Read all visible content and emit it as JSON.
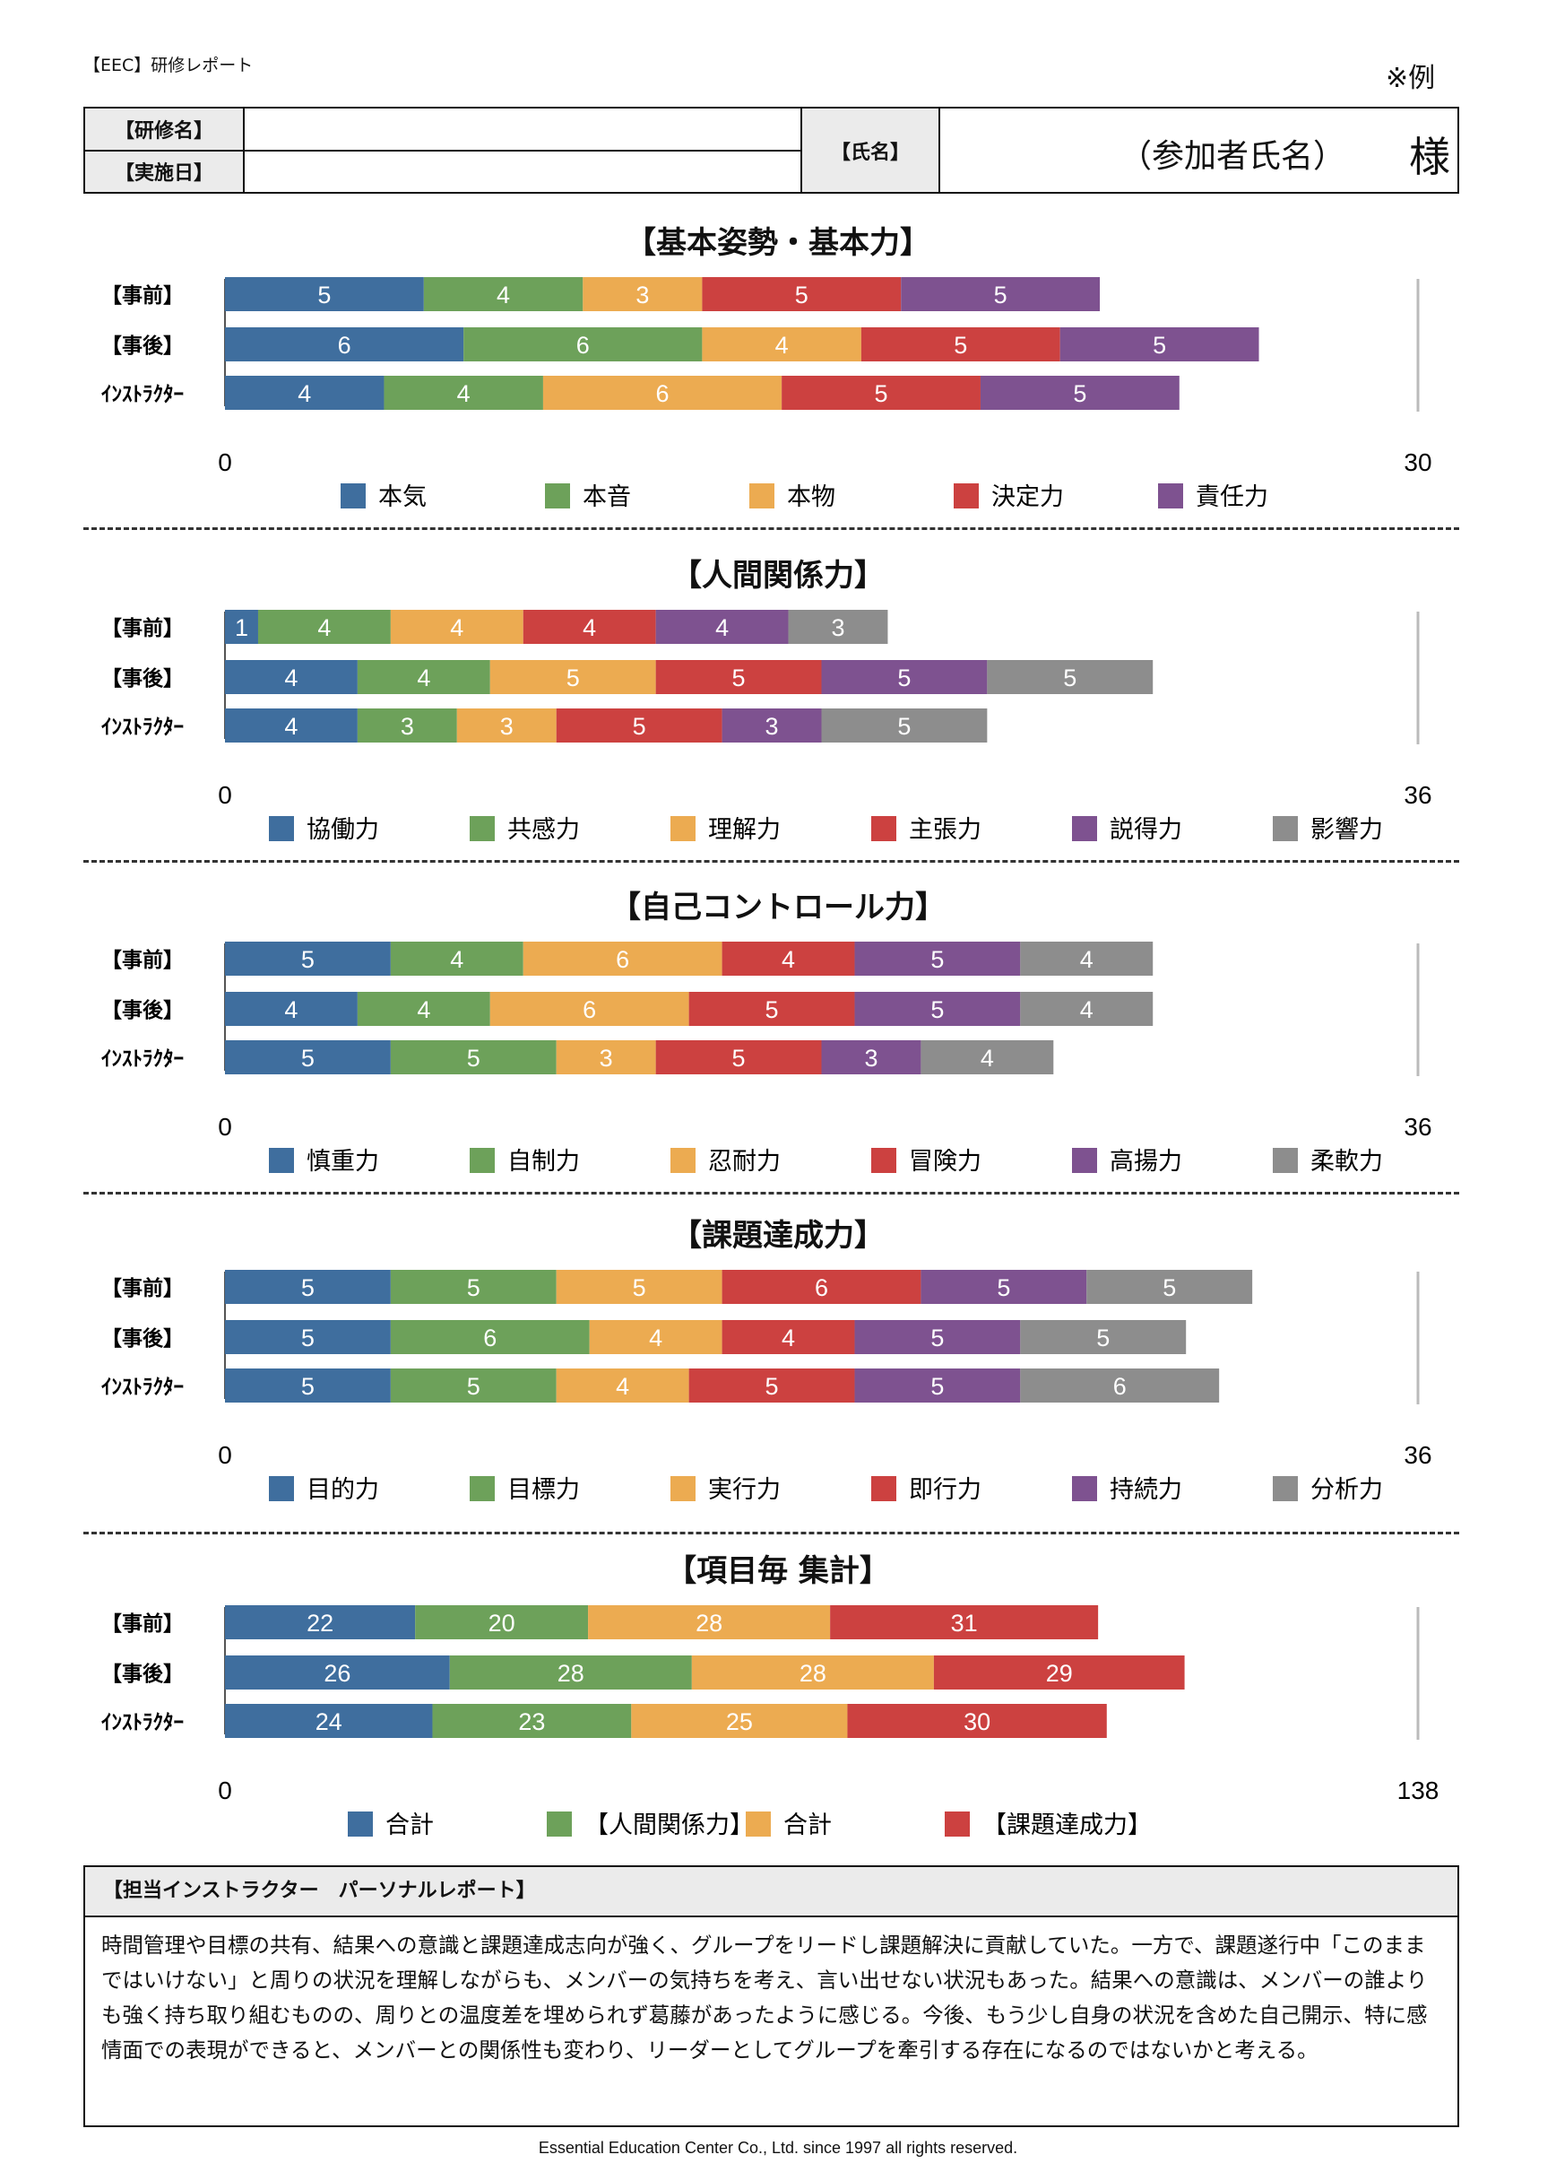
{
  "header": {
    "brand": "【EEC】研修レポート",
    "note": "※例",
    "training_name_label": "【研修名】",
    "training_name_value": "",
    "date_label": "【実施日】",
    "date_value": "",
    "name_label": "【氏名】",
    "name_value": "（参加者氏名）",
    "honorific": "様"
  },
  "colors": {
    "blue": "#3f6e9e",
    "green": "#6da15a",
    "orange": "#ecab51",
    "red": "#cc4140",
    "purple": "#7e5290",
    "gray": "#8d8d8d"
  },
  "chart_data": [
    {
      "type": "bar",
      "orientation": "horizontal",
      "stacked": true,
      "title": "【基本姿勢・基本力】",
      "categories": [
        "【事前】",
        "【事後】",
        "ｲﾝｽﾄﾗｸﾀｰ"
      ],
      "xlim": [
        0,
        30
      ],
      "x_tick_labels": [
        "0",
        "30"
      ],
      "legend_position": "bottom",
      "series": [
        {
          "name": "本気",
          "color": "#3f6e9e",
          "values": [
            5,
            6,
            4
          ]
        },
        {
          "name": "本音",
          "color": "#6da15a",
          "values": [
            4,
            6,
            4
          ]
        },
        {
          "name": "本物",
          "color": "#ecab51",
          "values": [
            3,
            4,
            6
          ]
        },
        {
          "name": "決定力",
          "color": "#cc4140",
          "values": [
            5,
            5,
            5
          ]
        },
        {
          "name": "責任力",
          "color": "#7e5290",
          "values": [
            5,
            5,
            5
          ]
        }
      ]
    },
    {
      "type": "bar",
      "orientation": "horizontal",
      "stacked": true,
      "title": "【人間関係力】",
      "categories": [
        "【事前】",
        "【事後】",
        "ｲﾝｽﾄﾗｸﾀｰ"
      ],
      "xlim": [
        0,
        36
      ],
      "x_tick_labels": [
        "0",
        "36"
      ],
      "legend_position": "bottom",
      "series": [
        {
          "name": "協働力",
          "color": "#3f6e9e",
          "values": [
            1,
            4,
            4
          ]
        },
        {
          "name": "共感力",
          "color": "#6da15a",
          "values": [
            4,
            4,
            3
          ]
        },
        {
          "name": "理解力",
          "color": "#ecab51",
          "values": [
            4,
            5,
            3
          ]
        },
        {
          "name": "主張力",
          "color": "#cc4140",
          "values": [
            4,
            5,
            5
          ]
        },
        {
          "name": "説得力",
          "color": "#7e5290",
          "values": [
            4,
            5,
            3
          ]
        },
        {
          "name": "影響力",
          "color": "#8d8d8d",
          "values": [
            3,
            5,
            5
          ]
        }
      ]
    },
    {
      "type": "bar",
      "orientation": "horizontal",
      "stacked": true,
      "title": "【自己コントロール力】",
      "categories": [
        "【事前】",
        "【事後】",
        "ｲﾝｽﾄﾗｸﾀｰ"
      ],
      "xlim": [
        0,
        36
      ],
      "x_tick_labels": [
        "0",
        "36"
      ],
      "legend_position": "bottom",
      "series": [
        {
          "name": "慎重力",
          "color": "#3f6e9e",
          "values": [
            5,
            4,
            5
          ]
        },
        {
          "name": "自制力",
          "color": "#6da15a",
          "values": [
            4,
            4,
            5
          ]
        },
        {
          "name": "忍耐力",
          "color": "#ecab51",
          "values": [
            6,
            6,
            3
          ]
        },
        {
          "name": "冒険力",
          "color": "#cc4140",
          "values": [
            4,
            5,
            5
          ]
        },
        {
          "name": "高揚力",
          "color": "#7e5290",
          "values": [
            5,
            5,
            3
          ]
        },
        {
          "name": "柔軟力",
          "color": "#8d8d8d",
          "values": [
            4,
            4,
            4
          ]
        }
      ]
    },
    {
      "type": "bar",
      "orientation": "horizontal",
      "stacked": true,
      "title": "【課題達成力】",
      "categories": [
        "【事前】",
        "【事後】",
        "ｲﾝｽﾄﾗｸﾀｰ"
      ],
      "xlim": [
        0,
        36
      ],
      "x_tick_labels": [
        "0",
        "36"
      ],
      "legend_position": "bottom",
      "series": [
        {
          "name": "目的力",
          "color": "#3f6e9e",
          "values": [
            5,
            5,
            5
          ]
        },
        {
          "name": "目標力",
          "color": "#6da15a",
          "values": [
            5,
            6,
            5
          ]
        },
        {
          "name": "実行力",
          "color": "#ecab51",
          "values": [
            5,
            4,
            4
          ]
        },
        {
          "name": "即行力",
          "color": "#cc4140",
          "values": [
            6,
            4,
            5
          ]
        },
        {
          "name": "持続力",
          "color": "#7e5290",
          "values": [
            5,
            5,
            5
          ]
        },
        {
          "name": "分析力",
          "color": "#8d8d8d",
          "values": [
            5,
            5,
            6
          ]
        }
      ]
    },
    {
      "type": "bar",
      "orientation": "horizontal",
      "stacked": true,
      "title": "【項目毎 集計】",
      "categories": [
        "【事前】",
        "【事後】",
        "ｲﾝｽﾄﾗｸﾀｰ"
      ],
      "xlim": [
        0,
        138
      ],
      "x_tick_labels": [
        "0",
        "138"
      ],
      "legend_position": "bottom",
      "series": [
        {
          "name": "合計",
          "color": "#3f6e9e",
          "values": [
            22,
            26,
            24
          ]
        },
        {
          "name": "【人間関係力】",
          "color": "#6da15a",
          "values": [
            20,
            28,
            23
          ]
        },
        {
          "name": "合計",
          "color": "#ecab51",
          "values": [
            28,
            28,
            25
          ]
        },
        {
          "name": "【課題達成力】",
          "color": "#cc4140",
          "values": [
            31,
            29,
            30
          ]
        }
      ]
    }
  ],
  "comment": {
    "title": "【担当インストラクター　パーソナルレポート】",
    "body": "時間管理や目標の共有、結果への意識と課題達成志向が強く、グループをリードし課題解決に貢献していた。一方で、課題遂行中「このままではいけない」と周りの状況を理解しながらも、メンバーの気持ちを考え、言い出せない状況もあった。結果への意識は、メンバーの誰よりも強く持ち取り組むものの、周りとの温度差を埋められず葛藤があったように感じる。今後、もう少し自身の状況を含めた自己開示、特に感情面での表現ができると、メンバーとの関係性も変わり、リーダーとしてグループを牽引する存在になるのではないかと考える。"
  },
  "footer": "Essential Education Center Co., Ltd. since 1997 all rights reserved."
}
